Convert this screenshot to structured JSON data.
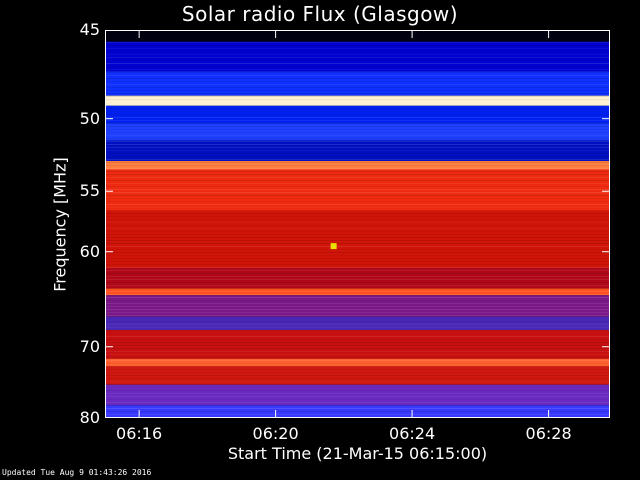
{
  "chart_data": {
    "type": "heatmap",
    "title": "Solar radio Flux (Glasgow)",
    "xlabel": "Start Time (21-Mar-15 06:15:00)",
    "ylabel": "Frequency [MHz]",
    "x_ticks": [
      "06:16",
      "06:20",
      "06:24",
      "06:28"
    ],
    "x_tick_minutes": [
      1,
      5,
      9,
      13
    ],
    "xlim_minutes": [
      0,
      14.8
    ],
    "y_ticks": [
      45,
      50,
      55,
      60,
      70,
      80
    ],
    "ylim": [
      45,
      80
    ],
    "y_scale": "reciprocal",
    "bands": [
      {
        "f0": 45.0,
        "f1": 45.6,
        "color": "#000010"
      },
      {
        "f0": 45.6,
        "f1": 47.2,
        "color": "#0000d0"
      },
      {
        "f0": 47.2,
        "f1": 48.6,
        "color": "#1030ff"
      },
      {
        "f0": 48.6,
        "f1": 49.2,
        "color": "#fff2d0"
      },
      {
        "f0": 49.2,
        "f1": 50.3,
        "color": "#0020f0"
      },
      {
        "f0": 50.3,
        "f1": 51.4,
        "color": "#2040ff"
      },
      {
        "f0": 51.4,
        "f1": 52.8,
        "color": "#0010c0"
      },
      {
        "f0": 52.8,
        "f1": 53.4,
        "color": "#ff8040"
      },
      {
        "f0": 53.4,
        "f1": 56.5,
        "color": "#ee2a10"
      },
      {
        "f0": 56.5,
        "f1": 61.5,
        "color": "#d01408"
      },
      {
        "f0": 61.5,
        "f1": 63.5,
        "color": "#b00818"
      },
      {
        "f0": 63.5,
        "f1": 64.2,
        "color": "#ff5020"
      },
      {
        "f0": 64.2,
        "f1": 66.5,
        "color": "#7a1888"
      },
      {
        "f0": 66.5,
        "f1": 68.0,
        "color": "#4a28b8"
      },
      {
        "f0": 68.0,
        "f1": 71.5,
        "color": "#c81010"
      },
      {
        "f0": 71.5,
        "f1": 72.5,
        "color": "#ff6030"
      },
      {
        "f0": 72.5,
        "f1": 75.0,
        "color": "#d01810"
      },
      {
        "f0": 75.0,
        "f1": 78.0,
        "color": "#6a2ac0"
      },
      {
        "f0": 78.0,
        "f1": 80.0,
        "color": "#3838ff"
      }
    ],
    "hot_spot": {
      "minute": 6.7,
      "freq": 59.5,
      "color": "#e8e000"
    },
    "palette": {
      "background": "#000000",
      "text": "#ffffff"
    }
  },
  "footer": {
    "updated": "Updated Tue Aug  9 01:43:26 2016"
  }
}
